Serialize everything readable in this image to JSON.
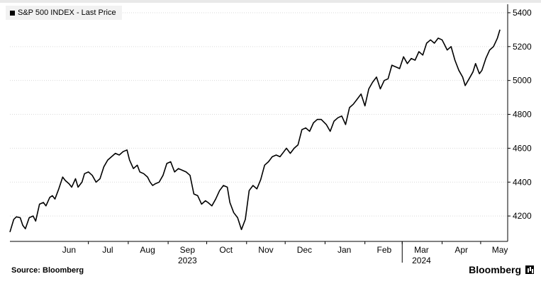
{
  "legend": {
    "label": "S&P 500 INDEX - Last Price"
  },
  "source": "Source: Bloomberg",
  "brand": "Bloomberg",
  "chart_data": {
    "type": "line",
    "series": [
      {
        "name": "S&P 500 INDEX - Last Price",
        "color": "#000000",
        "points": [
          [
            "2023-05-01",
            4105
          ],
          [
            "2023-05-04",
            4180
          ],
          [
            "2023-05-06",
            4195
          ],
          [
            "2023-05-09",
            4190
          ],
          [
            "2023-05-11",
            4145
          ],
          [
            "2023-05-13",
            4125
          ],
          [
            "2023-05-16",
            4190
          ],
          [
            "2023-05-19",
            4200
          ],
          [
            "2023-05-21",
            4170
          ],
          [
            "2023-05-24",
            4270
          ],
          [
            "2023-05-27",
            4280
          ],
          [
            "2023-05-29",
            4260
          ],
          [
            "2023-06-01",
            4310
          ],
          [
            "2023-06-03",
            4320
          ],
          [
            "2023-06-05",
            4300
          ],
          [
            "2023-06-08",
            4360
          ],
          [
            "2023-06-11",
            4430
          ],
          [
            "2023-06-13",
            4410
          ],
          [
            "2023-06-16",
            4390
          ],
          [
            "2023-06-18",
            4370
          ],
          [
            "2023-06-21",
            4420
          ],
          [
            "2023-06-23",
            4370
          ],
          [
            "2023-06-26",
            4400
          ],
          [
            "2023-06-28",
            4450
          ],
          [
            "2023-07-01",
            4460
          ],
          [
            "2023-07-04",
            4440
          ],
          [
            "2023-07-07",
            4400
          ],
          [
            "2023-07-10",
            4420
          ],
          [
            "2023-07-13",
            4490
          ],
          [
            "2023-07-16",
            4530
          ],
          [
            "2023-07-19",
            4550
          ],
          [
            "2023-07-22",
            4570
          ],
          [
            "2023-07-25",
            4560
          ],
          [
            "2023-07-28",
            4580
          ],
          [
            "2023-07-31",
            4590
          ],
          [
            "2023-08-02",
            4530
          ],
          [
            "2023-08-05",
            4480
          ],
          [
            "2023-08-08",
            4500
          ],
          [
            "2023-08-10",
            4460
          ],
          [
            "2023-08-13",
            4450
          ],
          [
            "2023-08-16",
            4430
          ],
          [
            "2023-08-18",
            4400
          ],
          [
            "2023-08-20",
            4380
          ],
          [
            "2023-08-22",
            4390
          ],
          [
            "2023-08-25",
            4400
          ],
          [
            "2023-08-28",
            4440
          ],
          [
            "2023-08-31",
            4510
          ],
          [
            "2023-09-03",
            4520
          ],
          [
            "2023-09-06",
            4460
          ],
          [
            "2023-09-09",
            4480
          ],
          [
            "2023-09-12",
            4470
          ],
          [
            "2023-09-15",
            4460
          ],
          [
            "2023-09-18",
            4440
          ],
          [
            "2023-09-21",
            4330
          ],
          [
            "2023-09-24",
            4320
          ],
          [
            "2023-09-27",
            4270
          ],
          [
            "2023-09-30",
            4290
          ],
          [
            "2023-10-02",
            4280
          ],
          [
            "2023-10-05",
            4260
          ],
          [
            "2023-10-08",
            4300
          ],
          [
            "2023-10-11",
            4350
          ],
          [
            "2023-10-14",
            4380
          ],
          [
            "2023-10-17",
            4370
          ],
          [
            "2023-10-19",
            4280
          ],
          [
            "2023-10-22",
            4220
          ],
          [
            "2023-10-25",
            4190
          ],
          [
            "2023-10-28",
            4120
          ],
          [
            "2023-10-31",
            4180
          ],
          [
            "2023-11-03",
            4350
          ],
          [
            "2023-11-06",
            4380
          ],
          [
            "2023-11-09",
            4360
          ],
          [
            "2023-11-12",
            4415
          ],
          [
            "2023-11-15",
            4500
          ],
          [
            "2023-11-18",
            4520
          ],
          [
            "2023-11-21",
            4550
          ],
          [
            "2023-11-24",
            4560
          ],
          [
            "2023-11-27",
            4550
          ],
          [
            "2023-11-30",
            4580
          ],
          [
            "2023-12-02",
            4600
          ],
          [
            "2023-12-05",
            4570
          ],
          [
            "2023-12-08",
            4600
          ],
          [
            "2023-12-11",
            4620
          ],
          [
            "2023-12-14",
            4710
          ],
          [
            "2023-12-17",
            4720
          ],
          [
            "2023-12-20",
            4700
          ],
          [
            "2023-12-23",
            4750
          ],
          [
            "2023-12-26",
            4770
          ],
          [
            "2023-12-29",
            4770
          ],
          [
            "2024-01-02",
            4740
          ],
          [
            "2024-01-05",
            4700
          ],
          [
            "2024-01-08",
            4760
          ],
          [
            "2024-01-11",
            4780
          ],
          [
            "2024-01-14",
            4790
          ],
          [
            "2024-01-17",
            4740
          ],
          [
            "2024-01-20",
            4840
          ],
          [
            "2024-01-23",
            4860
          ],
          [
            "2024-01-26",
            4890
          ],
          [
            "2024-01-29",
            4920
          ],
          [
            "2024-02-01",
            4850
          ],
          [
            "2024-02-04",
            4950
          ],
          [
            "2024-02-07",
            4990
          ],
          [
            "2024-02-10",
            5020
          ],
          [
            "2024-02-13",
            4950
          ],
          [
            "2024-02-16",
            5000
          ],
          [
            "2024-02-19",
            5010
          ],
          [
            "2024-02-22",
            5090
          ],
          [
            "2024-02-25",
            5080
          ],
          [
            "2024-02-28",
            5070
          ],
          [
            "2024-03-02",
            5140
          ],
          [
            "2024-03-05",
            5100
          ],
          [
            "2024-03-08",
            5130
          ],
          [
            "2024-03-11",
            5120
          ],
          [
            "2024-03-14",
            5170
          ],
          [
            "2024-03-17",
            5150
          ],
          [
            "2024-03-20",
            5220
          ],
          [
            "2024-03-23",
            5240
          ],
          [
            "2024-03-26",
            5220
          ],
          [
            "2024-03-29",
            5250
          ],
          [
            "2024-04-01",
            5240
          ],
          [
            "2024-04-03",
            5210
          ],
          [
            "2024-04-05",
            5180
          ],
          [
            "2024-04-08",
            5200
          ],
          [
            "2024-04-11",
            5120
          ],
          [
            "2024-04-14",
            5060
          ],
          [
            "2024-04-17",
            5020
          ],
          [
            "2024-04-19",
            4970
          ],
          [
            "2024-04-22",
            5010
          ],
          [
            "2024-04-25",
            5050
          ],
          [
            "2024-04-27",
            5100
          ],
          [
            "2024-04-30",
            5040
          ],
          [
            "2024-05-02",
            5060
          ],
          [
            "2024-05-05",
            5130
          ],
          [
            "2024-05-08",
            5180
          ],
          [
            "2024-05-11",
            5200
          ],
          [
            "2024-05-14",
            5250
          ],
          [
            "2024-05-16",
            5300
          ]
        ]
      }
    ],
    "x_range": [
      "2023-05-01",
      "2024-05-22"
    ],
    "ylim": [
      4050,
      5450
    ],
    "y_ticks": [
      4200,
      4400,
      4600,
      4800,
      5000,
      5200,
      5400
    ],
    "y_axis_side": "right",
    "x_ticks": [
      {
        "label": "Jun",
        "date": "2023-06-16"
      },
      {
        "label": "Jul",
        "date": "2023-07-16"
      },
      {
        "label": "Aug",
        "date": "2023-08-16"
      },
      {
        "label": "Sep",
        "date": "2023-09-16"
      },
      {
        "label": "Oct",
        "date": "2023-10-16"
      },
      {
        "label": "Nov",
        "date": "2023-11-16"
      },
      {
        "label": "Dec",
        "date": "2023-12-16"
      },
      {
        "label": "Jan",
        "date": "2024-01-16"
      },
      {
        "label": "Feb",
        "date": "2024-02-16"
      },
      {
        "label": "Mar",
        "date": "2024-03-16"
      },
      {
        "label": "Apr",
        "date": "2024-04-16"
      },
      {
        "label": "May",
        "date": "2024-05-16"
      }
    ],
    "x_month_starts": [
      "2023-07-01",
      "2023-08-01",
      "2023-09-01",
      "2023-10-01",
      "2023-11-01",
      "2023-12-01",
      "2024-01-01",
      "2024-02-01",
      "2024-03-01",
      "2024-04-01",
      "2024-05-01"
    ],
    "year_labels": [
      {
        "label": "2023",
        "date": "2023-09-16"
      },
      {
        "label": "2024",
        "date": "2024-03-16"
      }
    ],
    "year_divider": "2024-03-01",
    "grid": "horizontal",
    "legend_position": "top-left"
  }
}
